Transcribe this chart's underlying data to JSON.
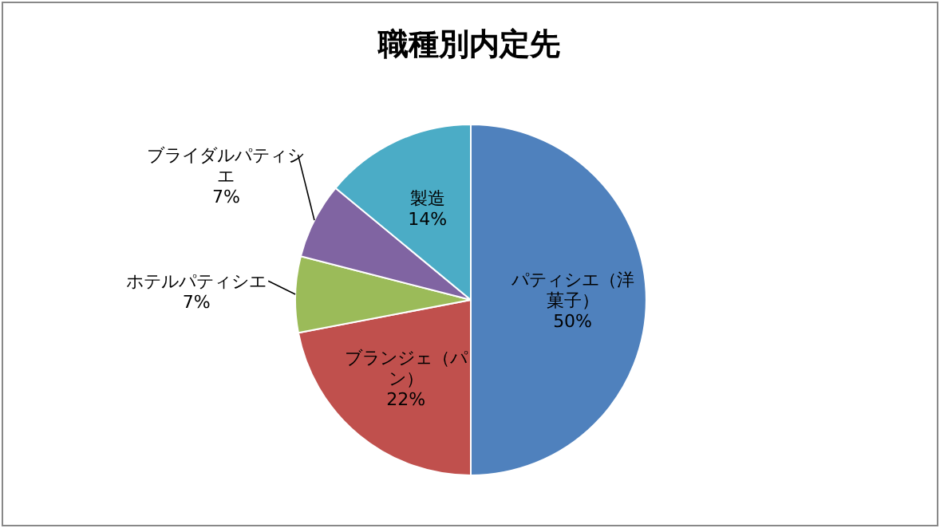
{
  "chart_data": {
    "type": "pie",
    "title": "職種別内定先",
    "categories": [
      "パティシエ（洋菓子）",
      "ブランジェ（パン）",
      "ホテルパティシエ",
      "ブライダルパティシエ",
      "製造"
    ],
    "values": [
      50,
      22,
      7,
      7,
      14
    ],
    "colors": [
      "#4f81bd",
      "#c0504d",
      "#9bbb59",
      "#8064a2",
      "#4bacc6"
    ],
    "value_labels": [
      "50%",
      "22%",
      "7%",
      "7%",
      "14%"
    ]
  }
}
